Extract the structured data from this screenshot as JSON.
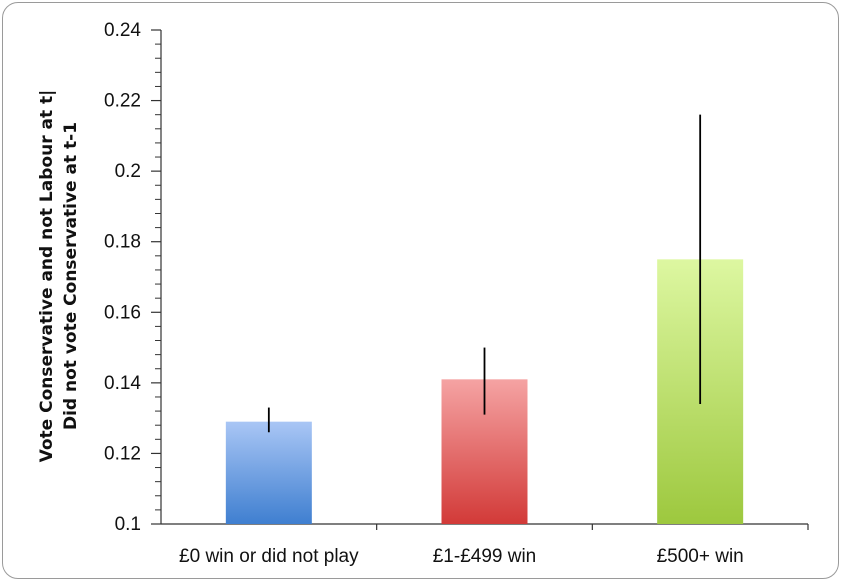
{
  "chart_data": {
    "type": "bar",
    "categories": [
      "£0 win or did not play",
      "£1-£499 win",
      "£500+ win"
    ],
    "values": [
      0.129,
      0.141,
      0.175
    ],
    "error_low": [
      0.126,
      0.131,
      0.134
    ],
    "error_high": [
      0.133,
      0.15,
      0.216
    ],
    "title": "",
    "xlabel": "",
    "ylabel_lines": [
      "Vote Conservative and not Labour at t|",
      "Did not vote Conservative at t-1"
    ],
    "ylim": [
      0.1,
      0.24
    ],
    "yticks": [
      0.1,
      0.12,
      0.14,
      0.16,
      0.18,
      0.2,
      0.22,
      0.24
    ],
    "ytick_labels": [
      "0.1",
      "0.12",
      "0.14",
      "0.16",
      "0.18",
      "0.2",
      "0.22",
      "0.24"
    ],
    "minor_ticks_per_major": 4,
    "grid": false,
    "legend": "none",
    "bar_colors": [
      {
        "top": "#a9c6f5",
        "bottom": "#3f7fd0"
      },
      {
        "top": "#f5a3a3",
        "bottom": "#d23a38"
      },
      {
        "top": "#ddf7a1",
        "bottom": "#9dc83e"
      }
    ]
  }
}
